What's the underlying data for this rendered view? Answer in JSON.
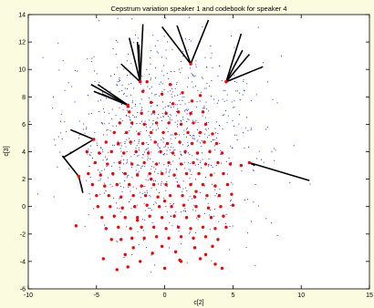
{
  "chart_data": {
    "type": "scatter",
    "title": "Cepstrum variation speaker 1 and codebook for speaker 4",
    "xlabel": "c[2]",
    "ylabel": "c[3]",
    "xlim": [
      -10,
      15
    ],
    "ylim": [
      -6,
      14
    ],
    "xticks": [
      -10,
      -5,
      0,
      5,
      10,
      15
    ],
    "yticks": [
      -6,
      -4,
      -2,
      0,
      2,
      4,
      6,
      8,
      10,
      12,
      14
    ],
    "grid": false,
    "colors": {
      "codebook": "#ff0000",
      "speaker1": "#0000ff",
      "lines": "#000000",
      "background": "#fbfbe0",
      "axes_bg": "#ffffff"
    },
    "codebook_points": [
      [
        -6.5,
        -1.4
      ],
      [
        -4.5,
        -3.8
      ],
      [
        -3.5,
        -4.6
      ],
      [
        -2.7,
        -4.4
      ],
      [
        -1.8,
        -4.0
      ],
      [
        0.0,
        -4.5
      ],
      [
        1.2,
        -4.0
      ],
      [
        2.6,
        -3.8
      ],
      [
        3.7,
        -4.2
      ],
      [
        4.2,
        -4.5
      ],
      [
        -2.9,
        -3.5
      ],
      [
        -0.9,
        -3.4
      ],
      [
        0.8,
        -3.3
      ],
      [
        3.0,
        -3.5
      ],
      [
        -2.3,
        -3.0
      ],
      [
        -0.2,
        -2.9
      ],
      [
        2.2,
        -3.0
      ],
      [
        3.5,
        -2.9
      ],
      [
        -3.9,
        -2.4
      ],
      [
        -3.2,
        -2.4
      ],
      [
        -2.4,
        -2.3
      ],
      [
        -1.5,
        -2.3
      ],
      [
        -0.6,
        -2.2
      ],
      [
        0.3,
        -2.3
      ],
      [
        1.2,
        -2.2
      ],
      [
        2.1,
        -2.3
      ],
      [
        3.0,
        -2.2
      ],
      [
        3.9,
        -2.4
      ],
      [
        -4.3,
        -1.6
      ],
      [
        -3.4,
        -1.5
      ],
      [
        -2.5,
        -1.6
      ],
      [
        -1.7,
        -1.5
      ],
      [
        -0.8,
        -1.5
      ],
      [
        0.1,
        -1.6
      ],
      [
        1.0,
        -1.5
      ],
      [
        1.9,
        -1.6
      ],
      [
        2.8,
        -1.5
      ],
      [
        3.7,
        -1.6
      ],
      [
        4.5,
        -1.5
      ],
      [
        -4.6,
        -0.8
      ],
      [
        -3.7,
        -0.7
      ],
      [
        -2.9,
        -0.8
      ],
      [
        -2.0,
        -0.8
      ],
      [
        -1.1,
        -0.7
      ],
      [
        -0.2,
        -0.8
      ],
      [
        0.7,
        -0.7
      ],
      [
        1.6,
        -0.8
      ],
      [
        2.5,
        -0.7
      ],
      [
        3.4,
        -0.8
      ],
      [
        4.3,
        -0.7
      ],
      [
        -4.9,
        0.0
      ],
      [
        -4.0,
        0.0
      ],
      [
        -3.1,
        -0.1
      ],
      [
        -2.2,
        0.0
      ],
      [
        -1.3,
        0.1
      ],
      [
        -0.4,
        0.0
      ],
      [
        0.5,
        0.0
      ],
      [
        1.4,
        0.1
      ],
      [
        2.3,
        0.0
      ],
      [
        3.2,
        -0.1
      ],
      [
        4.1,
        0.0
      ],
      [
        5.0,
        0.1
      ],
      [
        -5.0,
        0.8
      ],
      [
        -4.1,
        0.8
      ],
      [
        -3.2,
        0.7
      ],
      [
        -2.3,
        0.8
      ],
      [
        -1.4,
        0.8
      ],
      [
        -0.5,
        0.7
      ],
      [
        0.4,
        0.8
      ],
      [
        1.3,
        0.8
      ],
      [
        2.2,
        0.7
      ],
      [
        3.1,
        0.8
      ],
      [
        4.0,
        0.8
      ],
      [
        4.9,
        0.9
      ],
      [
        -5.3,
        1.6
      ],
      [
        -4.4,
        1.5
      ],
      [
        -3.5,
        1.6
      ],
      [
        -2.6,
        1.6
      ],
      [
        -1.7,
        1.5
      ],
      [
        -0.8,
        1.6
      ],
      [
        0.1,
        1.6
      ],
      [
        1.0,
        1.5
      ],
      [
        1.9,
        1.6
      ],
      [
        2.8,
        1.6
      ],
      [
        3.7,
        1.5
      ],
      [
        4.6,
        1.6
      ],
      [
        -5.6,
        2.4
      ],
      [
        -4.7,
        2.3
      ],
      [
        -3.8,
        2.4
      ],
      [
        -2.9,
        2.4
      ],
      [
        -2.0,
        2.3
      ],
      [
        -1.1,
        2.4
      ],
      [
        -0.2,
        2.4
      ],
      [
        0.7,
        2.3
      ],
      [
        1.6,
        2.4
      ],
      [
        2.5,
        2.4
      ],
      [
        3.4,
        2.3
      ],
      [
        4.3,
        2.4
      ],
      [
        -5.1,
        3.2
      ],
      [
        -4.2,
        3.1
      ],
      [
        -3.3,
        3.2
      ],
      [
        -2.4,
        3.1
      ],
      [
        -1.5,
        3.2
      ],
      [
        -0.6,
        3.1
      ],
      [
        0.3,
        3.2
      ],
      [
        1.2,
        3.1
      ],
      [
        2.1,
        3.2
      ],
      [
        3.0,
        3.1
      ],
      [
        3.9,
        3.2
      ],
      [
        4.8,
        3.1
      ],
      [
        5.6,
        3.0
      ],
      [
        -5.7,
        4.0
      ],
      [
        -4.8,
        3.9
      ],
      [
        -3.9,
        4.0
      ],
      [
        -3.0,
        3.9
      ],
      [
        -2.1,
        4.0
      ],
      [
        -1.2,
        3.9
      ],
      [
        -0.3,
        4.0
      ],
      [
        0.6,
        3.9
      ],
      [
        1.5,
        4.0
      ],
      [
        2.4,
        3.9
      ],
      [
        3.3,
        4.0
      ],
      [
        4.2,
        3.9
      ],
      [
        -4.3,
        4.7
      ],
      [
        -3.4,
        4.6
      ],
      [
        -2.5,
        4.7
      ],
      [
        -1.6,
        4.6
      ],
      [
        -0.7,
        4.7
      ],
      [
        0.2,
        4.6
      ],
      [
        1.1,
        4.7
      ],
      [
        2.0,
        4.6
      ],
      [
        2.9,
        4.7
      ],
      [
        3.8,
        4.6
      ],
      [
        -3.7,
        5.4
      ],
      [
        -2.8,
        5.4
      ],
      [
        -1.9,
        5.3
      ],
      [
        -1.0,
        5.4
      ],
      [
        -0.1,
        5.4
      ],
      [
        0.8,
        5.3
      ],
      [
        1.7,
        5.4
      ],
      [
        2.6,
        5.4
      ],
      [
        3.5,
        5.3
      ],
      [
        -3.3,
        6.1
      ],
      [
        -2.4,
        6.1
      ],
      [
        -1.5,
        6.0
      ],
      [
        -0.6,
        6.1
      ],
      [
        0.3,
        6.1
      ],
      [
        1.2,
        6.0
      ],
      [
        2.1,
        6.1
      ],
      [
        3.0,
        6.0
      ],
      [
        -2.6,
        6.9
      ],
      [
        -1.7,
        6.8
      ],
      [
        -0.8,
        6.9
      ],
      [
        0.1,
        6.8
      ],
      [
        1.0,
        6.9
      ],
      [
        1.9,
        6.8
      ],
      [
        2.8,
        6.9
      ],
      [
        -1.0,
        7.6
      ],
      [
        0.6,
        7.5
      ],
      [
        2.0,
        7.7
      ],
      [
        -2.7,
        7.4
      ],
      [
        -1.6,
        8.4
      ],
      [
        -0.2,
        8.2
      ],
      [
        1.3,
        8.3
      ],
      [
        2.6,
        8.1
      ],
      [
        -1.3,
        9.1
      ],
      [
        0.4,
        8.9
      ],
      [
        -6.3,
        2.2
      ],
      [
        -5.2,
        4.9
      ],
      [
        -2.7,
        7.3
      ],
      [
        -1.8,
        9.1
      ],
      [
        1.9,
        10.4
      ],
      [
        4.5,
        9.1
      ],
      [
        6.2,
        3.2
      ],
      [
        -2.0,
        -1.0
      ],
      [
        0.0,
        0.4
      ],
      [
        2.3,
        1.1
      ],
      [
        -1.0,
        2.0
      ],
      [
        1.1,
        -3.9
      ]
    ],
    "codebook_segments": [
      {
        "from": [
          -6.3,
          2.2
        ],
        "to": [
          [
            -7.5,
            3.7
          ],
          [
            -6.0,
            1.0
          ]
        ]
      },
      {
        "from": [
          -5.2,
          4.9
        ],
        "to": [
          [
            -7.4,
            3.6
          ],
          [
            -6.9,
            5.6
          ]
        ]
      },
      {
        "from": [
          -2.7,
          7.4
        ],
        "to": [
          [
            -5.2,
            8.4
          ],
          [
            -4.9,
            8.9
          ],
          [
            -5.4,
            8.9
          ],
          [
            -4.6,
            8.2
          ]
        ]
      },
      {
        "from": [
          -1.8,
          9.1
        ],
        "to": [
          [
            -1.6,
            13.3
          ],
          [
            -2.0,
            12.0
          ],
          [
            -2.6,
            12.3
          ],
          [
            -3.2,
            10.4
          ],
          [
            -1.9,
            11.8
          ]
        ]
      },
      {
        "from": [
          1.9,
          10.4
        ],
        "to": [
          [
            -0.2,
            13.1
          ],
          [
            0.9,
            13.2
          ],
          [
            3.2,
            13.6
          ]
        ]
      },
      {
        "from": [
          4.5,
          9.1
        ],
        "to": [
          [
            5.6,
            12.6
          ],
          [
            5.7,
            11.4
          ],
          [
            6.2,
            11.1
          ],
          [
            7.2,
            10.2
          ]
        ]
      },
      {
        "from": [
          6.2,
          3.2
        ],
        "to": [
          [
            10.6,
            1.9
          ],
          [
            6.6,
            3.0
          ]
        ]
      }
    ],
    "speaker1_cloud": {
      "center": [
        0.0,
        5.0
      ],
      "spread": [
        3.5,
        3.5
      ],
      "count": 900,
      "seed": 4
    }
  }
}
